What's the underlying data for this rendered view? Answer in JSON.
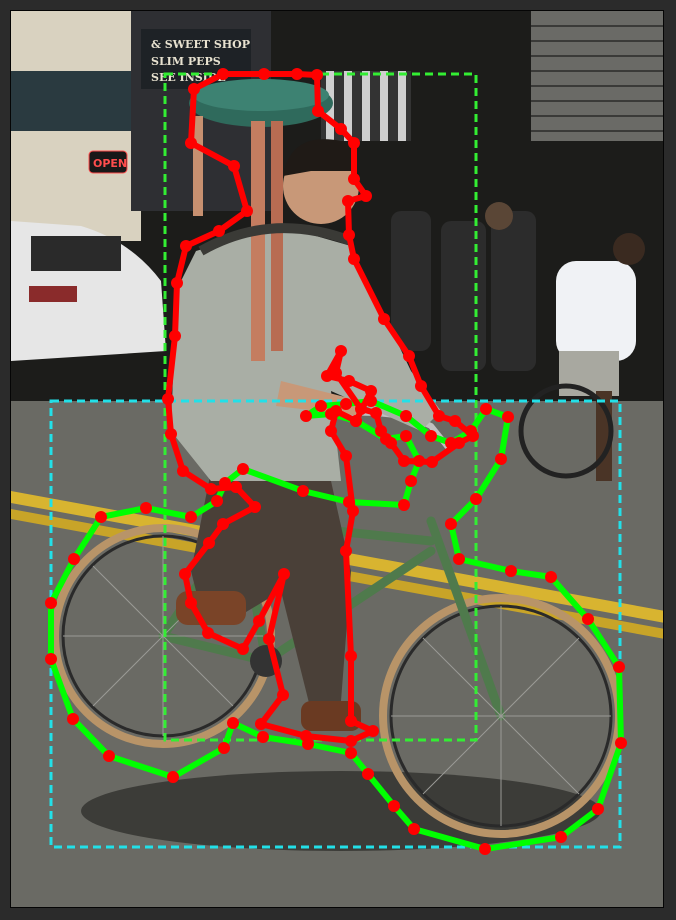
{
  "scene": {
    "sign_lines": [
      "& SWEET SHOP",
      "SLIM PEPS",
      "SEE INSIDE"
    ],
    "open_sign": "OPEN",
    "colors": {
      "street": "#6a6a64",
      "road_line": "#d8b430",
      "wall": "#1c1c1a",
      "shirt": "#a9aea5",
      "pants": "#4a4038",
      "bike": "#4f7a4c",
      "tire": "#b89468",
      "stool_seat": "#2f6a5c"
    }
  },
  "annotations": {
    "bbox_colors": {
      "person": "#33ee33",
      "bicycle": "#22e0e8"
    },
    "outline_colors": {
      "person": "#ff0000",
      "bicycle": "#00ff00"
    },
    "vertex_color": "#ff0000"
  }
}
